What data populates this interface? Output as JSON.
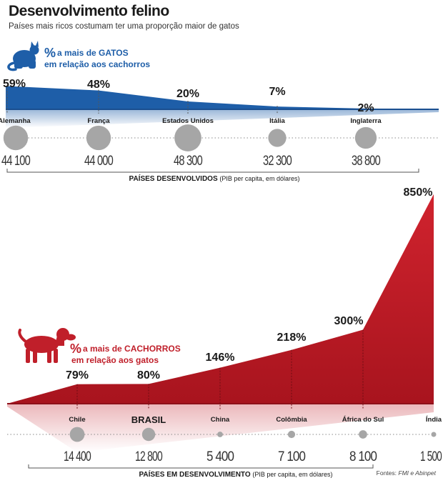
{
  "header": {
    "title": "Desenvolvimento felino",
    "subtitle": "Países mais ricos costumam ter uma proporção maior de gatos"
  },
  "sources": {
    "prefix": "Fontes:",
    "names": "FMI e Abinpet"
  },
  "colors": {
    "cats_blue": "#1e5ea8",
    "dogs_red": "#c01f2a",
    "circle_gray": "#a6a6a6",
    "text_dark": "#222222"
  },
  "icons": {
    "cat": "cat-silhouette-icon",
    "dog": "dog-silhouette-icon"
  },
  "chart_data": [
    {
      "type": "area",
      "legend": {
        "pct": "%",
        "line1": "a mais de GATOS",
        "line2": "em relação aos cachorros"
      },
      "axis_label": "PAÍSES DESENVOLVIDOS",
      "axis_sublabel": "(PIB per capita, em dólares)",
      "categories": [
        "Alemanha",
        "França",
        "Estados Unidos",
        "Itália",
        "Inglaterra"
      ],
      "values": [
        59,
        48,
        20,
        7,
        2
      ],
      "value_labels": [
        "59%",
        "48%",
        "20%",
        "7%",
        "2%"
      ],
      "gdp_values": [
        44100,
        44000,
        48300,
        32300,
        38800
      ],
      "gdp_labels": [
        "44 100",
        "44 000",
        "48 300",
        "32 300",
        "38 800"
      ]
    },
    {
      "type": "area",
      "legend": {
        "pct": "%",
        "line1": "a mais de CACHORROS",
        "line2": "em relação aos gatos"
      },
      "axis_label": "PAÍSES EM DESENVOLVIMENTO",
      "axis_sublabel": "(PIB per capita, em dólares)",
      "categories": [
        "Chile",
        "BRASIL",
        "China",
        "Colômbia",
        "África do Sul",
        "Índia"
      ],
      "values": [
        79,
        80,
        146,
        218,
        300,
        850
      ],
      "value_labels": [
        "79%",
        "80%",
        "146%",
        "218%",
        "300%",
        "850%"
      ],
      "gdp_values": [
        14400,
        12800,
        5400,
        7100,
        8100,
        1500
      ],
      "gdp_labels": [
        "14 400",
        "12 800",
        "5 400",
        "7 100",
        "8 100",
        "1 500"
      ]
    }
  ]
}
